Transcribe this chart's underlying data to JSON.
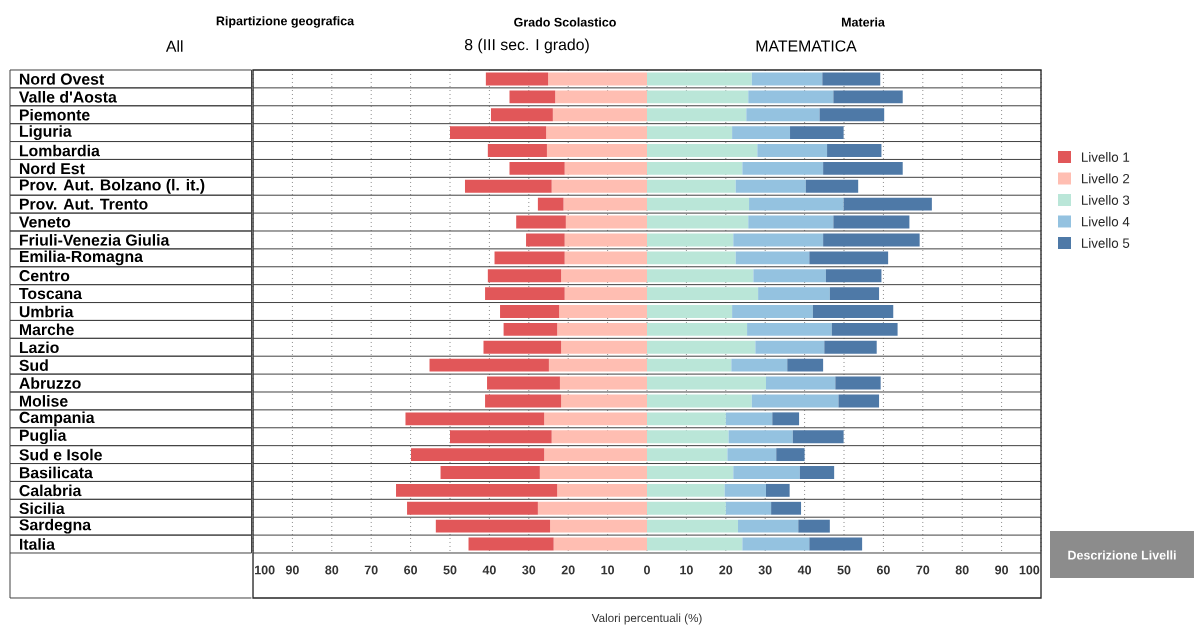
{
  "chart_data": {
    "type": "bar",
    "orientation": "horizontal",
    "stacked": true,
    "categories": [
      "Nord Ovest",
      "Valle d'Aosta",
      "Piemonte",
      "Liguria",
      "Lombardia",
      "Nord Est",
      "Prov. Aut. Bolzano (l. it.)",
      "Prov. Aut. Trento",
      "Veneto",
      "Friuli-Venezia Giulia",
      "Emilia-Romagna",
      "Centro",
      "Toscana",
      "Umbria",
      "Marche",
      "Lazio",
      "Sud",
      "Abruzzo",
      "Molise",
      "Campania",
      "Puglia",
      "Sud e Isole",
      "Basilicata",
      "Calabria",
      "Sicilia",
      "Sardegna",
      "Italia"
    ],
    "series": [
      {
        "name": "Livello 2",
        "color": "#ffbeb2",
        "values": [
          -25.1,
          -23.3,
          -23.9,
          -25.6,
          -25.4,
          -20.9,
          -24.2,
          -21.2,
          -20.6,
          -20.9,
          -20.9,
          -21.8,
          -20.9,
          -22.3,
          -22.8,
          -21.8,
          -24.9,
          -22.1,
          -21.8,
          -26.1,
          -24.2,
          -26.1,
          -27.2,
          -22.8,
          -27.7,
          -24.6,
          -23.7
        ]
      },
      {
        "name": "Livello 1",
        "color": "#e15759",
        "values": [
          -15.8,
          -11.6,
          -15.7,
          -24.4,
          -15.0,
          -14.0,
          -22.0,
          -6.5,
          -12.6,
          -9.8,
          -17.8,
          -18.6,
          -20.2,
          -15.0,
          -13.6,
          -19.7,
          -30.3,
          -18.5,
          -19.3,
          -35.2,
          -25.8,
          -33.8,
          -25.2,
          -40.9,
          -33.2,
          -29.0,
          -21.6
        ]
      },
      {
        "name": "Livello 3",
        "color": "#bae6d8",
        "values": [
          26.6,
          25.7,
          25.2,
          21.6,
          28.0,
          24.2,
          22.5,
          25.9,
          25.7,
          21.9,
          22.5,
          27.0,
          28.2,
          21.6,
          25.4,
          27.5,
          21.4,
          30.2,
          26.6,
          20.0,
          20.7,
          20.4,
          21.9,
          19.7,
          20.0,
          23.1,
          24.2
        ]
      },
      {
        "name": "Livello 4",
        "color": "#94c2e0",
        "values": [
          17.9,
          21.6,
          18.6,
          14.7,
          17.7,
          20.5,
          17.8,
          24.0,
          21.6,
          22.8,
          18.7,
          18.4,
          18.2,
          20.5,
          21.5,
          17.5,
          14.2,
          17.6,
          22.0,
          11.8,
          16.3,
          12.4,
          16.9,
          10.5,
          11.5,
          15.3,
          17.0
        ]
      },
      {
        "name": "Livello 5",
        "color": "#4e79a7",
        "values": [
          14.7,
          17.6,
          16.4,
          13.6,
          13.8,
          20.2,
          13.3,
          22.4,
          19.3,
          24.5,
          20.0,
          14.1,
          12.5,
          20.4,
          16.7,
          13.3,
          9.1,
          11.5,
          10.3,
          6.8,
          12.9,
          7.2,
          8.7,
          6.0,
          7.6,
          8.0,
          13.4
        ]
      }
    ],
    "xlim": [
      -100,
      100
    ],
    "xticks": [
      {
        "value": -100,
        "label": "100"
      },
      {
        "value": -90,
        "label": "90"
      },
      {
        "value": -80,
        "label": "80"
      },
      {
        "value": -70,
        "label": "70"
      },
      {
        "value": -60,
        "label": "60"
      },
      {
        "value": -50,
        "label": "50"
      },
      {
        "value": -40,
        "label": "40"
      },
      {
        "value": -30,
        "label": "30"
      },
      {
        "value": -20,
        "label": "20"
      },
      {
        "value": -10,
        "label": "10"
      },
      0,
      10,
      20,
      30,
      40,
      50,
      60,
      70,
      80,
      90,
      100
    ],
    "xlabel": "Valori percentuali (%)",
    "grid": "x",
    "legend": "right",
    "annotations": [
      "Ripartizione geografica",
      "All",
      "Grado Scolastico",
      "8 (III sec. I grado)",
      "Materia",
      "MATEMATICA",
      "Descrizione Livelli"
    ]
  }
}
